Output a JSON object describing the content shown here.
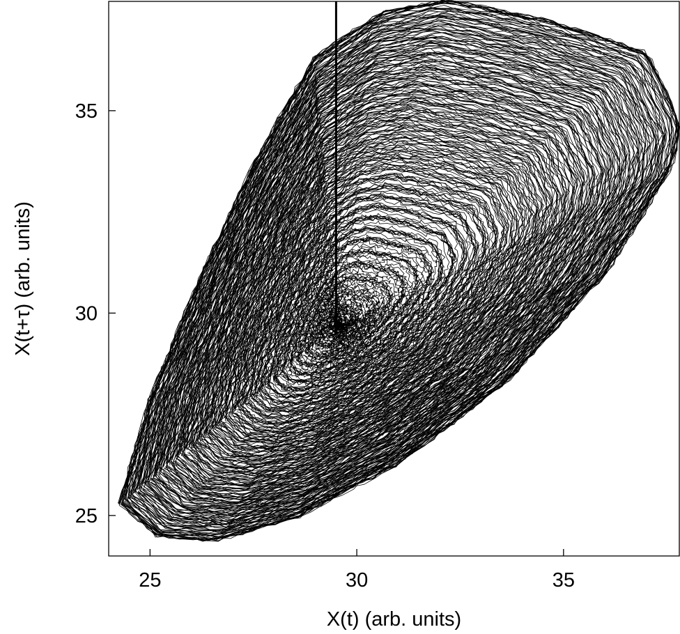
{
  "chart_data": {
    "type": "line",
    "title": "",
    "xlabel": "X(t) (arb. units)",
    "ylabel": "X(t+τ) (arb. units)",
    "xlim": [
      24.0,
      37.8
    ],
    "ylim": [
      24.0,
      37.7
    ],
    "xticks": [
      25,
      30,
      35
    ],
    "yticks": [
      25,
      30,
      35
    ],
    "grid": false,
    "line_color": "#000000",
    "series": [
      {
        "kind": "phase-space trajectory (delay embedding), spiral growing outward from fixed point",
        "fixed_point": [
          29.6,
          29.7
        ],
        "outer_envelope": [
          [
            24.3,
            25.3
          ],
          [
            25.2,
            24.5
          ],
          [
            26.6,
            24.4
          ],
          [
            28.6,
            25.0
          ],
          [
            31.0,
            26.3
          ],
          [
            33.6,
            28.3
          ],
          [
            36.0,
            31.0
          ],
          [
            37.6,
            33.6
          ],
          [
            37.8,
            34.7
          ],
          [
            37.0,
            36.4
          ],
          [
            34.6,
            37.2
          ],
          [
            32.2,
            37.7
          ],
          [
            30.6,
            37.4
          ],
          [
            29.0,
            36.3
          ],
          [
            27.6,
            33.8
          ],
          [
            26.2,
            30.8
          ],
          [
            25.0,
            27.8
          ],
          [
            24.3,
            25.3
          ]
        ]
      },
      {
        "kind": "vertical marker line",
        "x": 29.5,
        "y": [
          29.5,
          37.7
        ]
      }
    ]
  }
}
